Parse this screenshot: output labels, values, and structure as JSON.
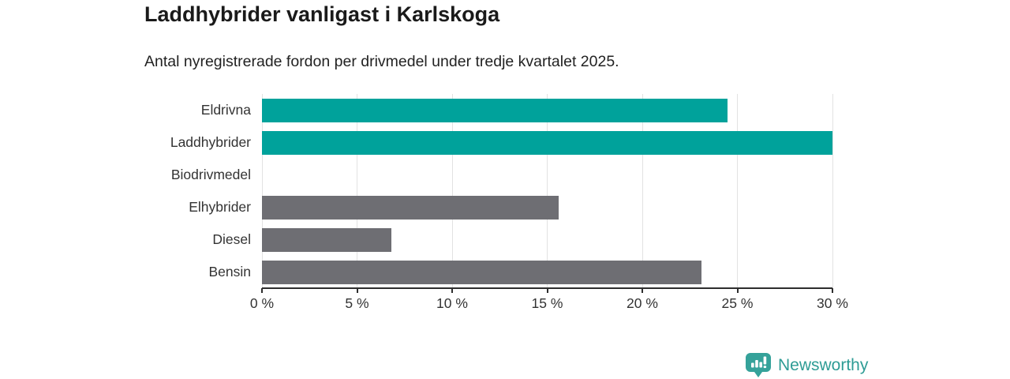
{
  "chart_data": {
    "type": "bar",
    "orientation": "horizontal",
    "title": "Laddhybrider vanligast i Karlskoga",
    "subtitle": "Antal nyregistrerade fordon per drivmedel under tredje kvartalet 2025.",
    "categories": [
      "Eldrivna",
      "Laddhybrider",
      "Biodrivmedel",
      "Elhybrider",
      "Diesel",
      "Bensin"
    ],
    "values": [
      24.5,
      30,
      0,
      15.6,
      6.8,
      23.1
    ],
    "bar_colors": [
      "#00a29b",
      "#00a29b",
      "#6e6e73",
      "#6e6e73",
      "#6e6e73",
      "#6e6e73"
    ],
    "xlabel": "",
    "ylabel": "",
    "xlim": [
      0,
      30
    ],
    "grid": true,
    "legend": null,
    "ticks": [
      {
        "value": 0,
        "label": "0 %"
      },
      {
        "value": 5,
        "label": "5 %"
      },
      {
        "value": 10,
        "label": "10 %"
      },
      {
        "value": 15,
        "label": "15 %"
      },
      {
        "value": 20,
        "label": "20 %"
      },
      {
        "value": 25,
        "label": "25 %"
      },
      {
        "value": 30,
        "label": "30 %"
      }
    ]
  },
  "colors": {
    "accent": "#00a29b",
    "muted": "#6e6e73",
    "gridline": "#e2e2e2",
    "axis": "#2e2e2e",
    "logo": "#35a29a"
  },
  "footer": {
    "brand": "Newsworthy"
  }
}
